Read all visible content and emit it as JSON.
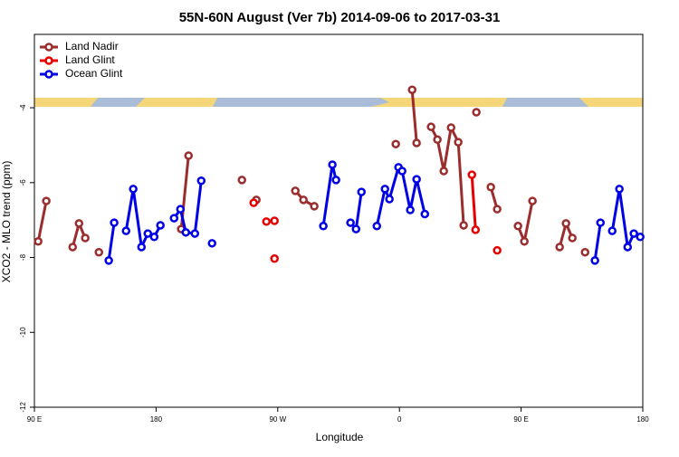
{
  "chart_data": {
    "type": "line",
    "title": "55N-60N August (Ver 7b)   2014-09-06 to 2017-03-31",
    "x_label": "Longitude",
    "y_label": "XCO2 - MLO trend (ppm)",
    "xlim": [
      -270,
      180
    ],
    "xticks": [
      {
        "value": -270,
        "label": "90 E"
      },
      {
        "value": -180,
        "label": "180"
      },
      {
        "value": -90,
        "label": "90 W"
      },
      0,
      {
        "value": 90,
        "label": "90 E"
      },
      {
        "value": 180,
        "label": "180"
      }
    ],
    "ylim": [
      -12,
      -2.04
    ],
    "yticks": [
      -12,
      -10,
      -8,
      -6,
      -4
    ],
    "legend": "top-left",
    "series": [
      {
        "name": "Land Nadir",
        "color": "#9b2d2d",
        "x": [
          -267.2,
          -261.2,
          null,
          -241.7,
          -237,
          -232.4,
          null,
          -222.3,
          null,
          -161.4,
          -156,
          null,
          -116.5,
          null,
          -105.8,
          null,
          -77,
          -71,
          -63,
          null,
          -2.7,
          null,
          9.4,
          12.7,
          null,
          23.4,
          28.1,
          32.8,
          38.2,
          43.5,
          47.5,
          null,
          56.9,
          null,
          67.6,
          72.3,
          null,
          87.7,
          92.4,
          98.4,
          null,
          118.5,
          123.2,
          127.9,
          null,
          137.3
        ],
        "values": [
          -7.57,
          -6.49,
          null,
          -7.72,
          -7.09,
          -7.48,
          null,
          -7.86,
          null,
          -7.24,
          -5.28,
          null,
          -5.93,
          null,
          -6.46,
          null,
          -6.22,
          -6.46,
          -6.63,
          null,
          -4.97,
          null,
          -3.52,
          -4.94,
          null,
          -4.51,
          -4.85,
          -5.69,
          -4.53,
          -4.92,
          -7.14,
          null,
          -4.12,
          null,
          -6.12,
          -6.71,
          null,
          -7.16,
          -7.57,
          -6.49,
          null,
          -7.72,
          -7.09,
          -7.48,
          null,
          -7.86
        ]
      },
      {
        "name": "Land Glint",
        "color": "#e60000",
        "x": [
          -107.8,
          null,
          -98.4,
          -92.4,
          null,
          -92.4,
          null,
          53.6,
          56.3,
          null,
          72.3
        ],
        "values": [
          -6.54,
          null,
          -7.04,
          -7.02,
          null,
          -8.03,
          null,
          -5.79,
          -7.26,
          null,
          -7.81
        ]
      },
      {
        "name": "Ocean Glint",
        "color": "#0000e6",
        "x": [
          -215,
          -211,
          null,
          -202.2,
          -196.9,
          -190.8,
          -186.1,
          -181.4,
          -176.8,
          null,
          -166.7,
          -162,
          -158,
          -151.3,
          -146.6,
          null,
          -138.6,
          null,
          -56.3,
          -49.6,
          -46.9,
          null,
          -36.2,
          -32.1,
          -28.1,
          null,
          -16.7,
          -10.7,
          -7.4,
          -0.7,
          2,
          8,
          12.7,
          18.8,
          null,
          144.6,
          148.7,
          null,
          157.4,
          162.7,
          168.8,
          173.4,
          178.1
        ],
        "values": [
          -8.08,
          -7.07,
          null,
          -7.29,
          -6.17,
          -7.72,
          -7.36,
          -7.45,
          -7.14,
          null,
          -6.95,
          -6.71,
          -7.33,
          -7.36,
          -5.95,
          null,
          -7.62,
          null,
          -7.16,
          -5.52,
          -5.93,
          null,
          -7.07,
          -7.24,
          -6.25,
          null,
          -7.16,
          -6.17,
          -6.44,
          -5.59,
          -5.69,
          -6.73,
          -5.91,
          -6.84,
          null,
          -8.08,
          -7.07,
          null,
          -7.29,
          -6.17,
          -7.72,
          -7.36,
          -7.45
        ]
      }
    ]
  }
}
